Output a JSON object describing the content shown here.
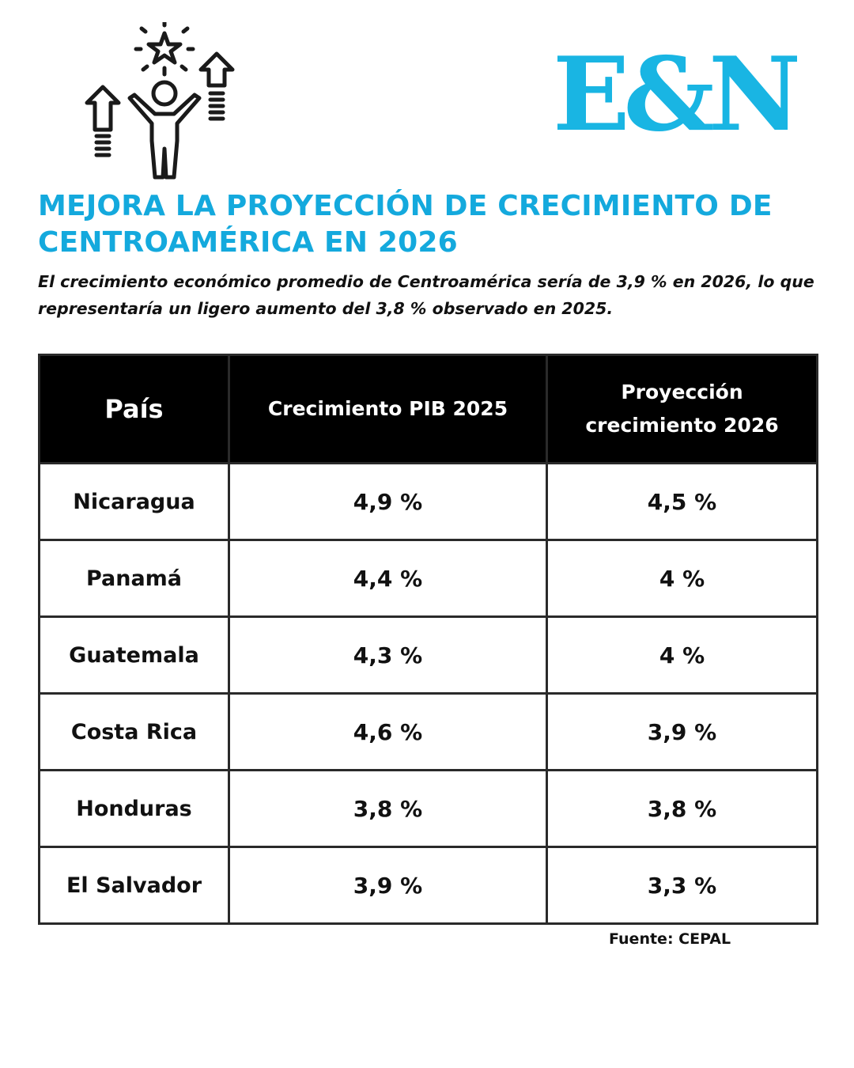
{
  "logo": {
    "text": "E&N",
    "color": "#19b5e3"
  },
  "icon": "person-growth-arrows-star-icon",
  "headline": "MEJORA LA PROYECCIÓN DE CRECIMIENTO DE CENTROAMÉRICA EN 2026",
  "lead": "El crecimiento económico promedio de Centroamérica sería de 3,9 % en 2026, lo que representaría un ligero aumento del 3,8 % observado en 2025.",
  "table": {
    "headers": [
      "País",
      "Crecimiento PIB 2025",
      "Proyección crecimiento 2026"
    ],
    "rows": [
      {
        "country": "Nicaragua",
        "pib_2025": "4,9 %",
        "proy_2026": "4,5 %"
      },
      {
        "country": "Panamá",
        "pib_2025": "4,4 %",
        "proy_2026": "4 %"
      },
      {
        "country": "Guatemala",
        "pib_2025": "4,3 %",
        "proy_2026": "4 %"
      },
      {
        "country": "Costa Rica",
        "pib_2025": "4,6 %",
        "proy_2026": "3,9 %"
      },
      {
        "country": "Honduras",
        "pib_2025": "3,8 %",
        "proy_2026": "3,8 %"
      },
      {
        "country": "El Salvador",
        "pib_2025": "3,9 %",
        "proy_2026": "3,3 %"
      }
    ]
  },
  "source": "Fuente: CEPAL",
  "colors": {
    "accent": "#14a9dd",
    "header_bg": "#000000",
    "border": "#2a2a2a"
  }
}
